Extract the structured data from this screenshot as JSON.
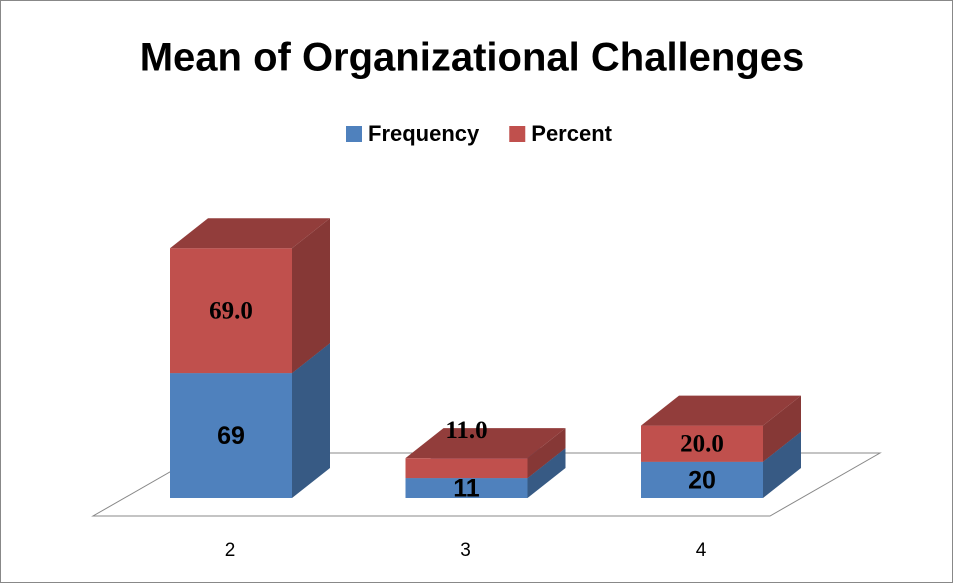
{
  "chart_data": {
    "type": "bar3d_stacked",
    "title": "Mean of Organizational Challenges",
    "categories": [
      "2",
      "3",
      "4"
    ],
    "series": [
      {
        "name": "Frequency",
        "color": "#4f81bd",
        "values": [
          69,
          11,
          20
        ]
      },
      {
        "name": "Percent",
        "color": "#c0504d",
        "values": [
          69,
          11,
          20
        ],
        "value_labels": [
          "69.0",
          "11.0",
          "20.0"
        ]
      }
    ],
    "legend": "top"
  }
}
